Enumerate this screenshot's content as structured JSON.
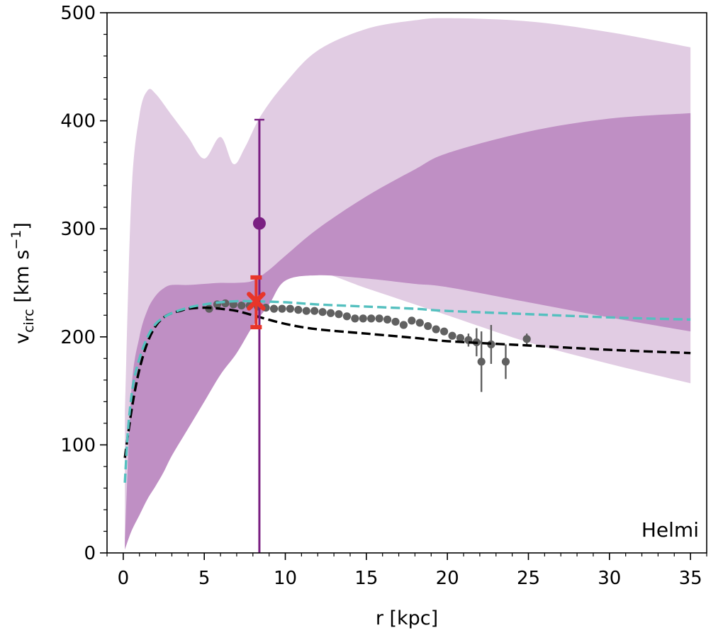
{
  "chart_data": {
    "type": "line",
    "xlabel": "r [kpc]",
    "ylabel_main": "v",
    "ylabel_sub": "circ",
    "ylabel_unit_pre": " [km s",
    "ylabel_unit_sup": "−1",
    "ylabel_unit_post": "]",
    "annotation": "Helmi",
    "xlim": [
      -1,
      36
    ],
    "ylim": [
      0,
      500
    ],
    "xticks": [
      0,
      5,
      10,
      15,
      20,
      25,
      30,
      35
    ],
    "yticks": [
      0,
      100,
      200,
      300,
      400,
      500
    ],
    "grid": false,
    "colors": {
      "outer_band": "#e1cce3",
      "inner_band": "#bf8fc4",
      "black_curve": "#000000",
      "teal_curve": "#55c0bf",
      "data_points": "#606060",
      "purple_marker": "#7a1f82",
      "red_marker": "#e8352a"
    },
    "bands": [
      {
        "id": "outer",
        "x": [
          0.1,
          0.5,
          1.0,
          1.5,
          2.0,
          3.0,
          4.0,
          5.0,
          6.0,
          6.8,
          7.5,
          8.5,
          10,
          12,
          15,
          18,
          20,
          25,
          30,
          35
        ],
        "upper": [
          130,
          330,
          405,
          428,
          425,
          405,
          385,
          365,
          385,
          360,
          375,
          405,
          435,
          465,
          485,
          493,
          495,
          492,
          482,
          468
        ],
        "lower": [
          5,
          50,
          80,
          105,
          120,
          140,
          155,
          170,
          185,
          200,
          215,
          230,
          255,
          260,
          245,
          230,
          220,
          195,
          175,
          157
        ]
      },
      {
        "id": "inner",
        "x": [
          0.1,
          0.5,
          1.0,
          1.5,
          2.0,
          2.5,
          3.0,
          4.0,
          5.0,
          6.0,
          7.0,
          8.0,
          9.0,
          10,
          12,
          15,
          18,
          20,
          25,
          30,
          35
        ],
        "upper": [
          10,
          150,
          200,
          225,
          238,
          245,
          248,
          248,
          249,
          250,
          250,
          252,
          262,
          275,
          300,
          330,
          355,
          370,
          390,
          402,
          407
        ],
        "lower": [
          3,
          20,
          35,
          50,
          62,
          75,
          90,
          115,
          140,
          165,
          185,
          210,
          230,
          252,
          257,
          254,
          249,
          246,
          232,
          218,
          205
        ]
      }
    ],
    "series": [
      {
        "id": "black-dashed",
        "style": "dashed",
        "x": [
          0.1,
          0.3,
          0.6,
          1.0,
          1.5,
          2.0,
          2.5,
          3.0,
          3.5,
          4.0,
          5.0,
          6.0,
          7.0,
          8.0,
          10,
          12,
          15,
          18,
          20,
          25,
          30,
          35
        ],
        "y": [
          88,
          110,
          140,
          170,
          195,
          210,
          218,
          222,
          224,
          226,
          227,
          226,
          224,
          220,
          212,
          207,
          203,
          199,
          196,
          192,
          188,
          185
        ]
      },
      {
        "id": "teal-dashed",
        "style": "dashed",
        "x": [
          0.1,
          0.3,
          0.6,
          1.0,
          1.5,
          2.0,
          2.5,
          3.0,
          4.0,
          5.0,
          6.0,
          7.0,
          8.0,
          10,
          12,
          15,
          18,
          20,
          25,
          30,
          35
        ],
        "y": [
          65,
          115,
          155,
          180,
          200,
          212,
          218,
          222,
          227,
          230,
          232,
          233,
          233,
          232,
          230,
          228,
          226,
          224,
          221,
          218,
          216
        ]
      }
    ],
    "points": {
      "x": [
        5.3,
        5.8,
        6.3,
        6.8,
        7.3,
        7.8,
        8.3,
        8.8,
        9.3,
        9.8,
        10.3,
        10.8,
        11.3,
        11.8,
        12.3,
        12.8,
        13.3,
        13.8,
        14.3,
        14.8,
        15.3,
        15.8,
        16.3,
        16.8,
        17.3,
        17.8,
        18.3,
        18.8,
        19.3,
        19.8,
        20.3,
        20.8,
        21.3,
        21.8,
        22.1,
        22.7,
        23.6,
        24.9
      ],
      "y": [
        226,
        230,
        231,
        230,
        229,
        229,
        228,
        227,
        226,
        226,
        226,
        225,
        224,
        224,
        223,
        222,
        221,
        219,
        217,
        217,
        217,
        217,
        216,
        214,
        211,
        215,
        213,
        210,
        207,
        205,
        201,
        199,
        197,
        195,
        177,
        193,
        177,
        198
      ],
      "err": [
        0,
        0,
        0,
        0,
        0,
        0,
        0,
        0,
        0,
        0,
        0,
        0,
        0,
        0,
        0,
        0,
        0,
        0,
        0,
        0,
        0,
        0,
        0,
        0,
        0,
        0,
        0,
        0,
        0,
        0,
        0,
        3,
        6,
        13,
        28,
        18,
        16,
        5
      ]
    },
    "markers": [
      {
        "id": "purple-circle",
        "x": 8.4,
        "y": 305,
        "y_low": 0,
        "y_high": 401,
        "shape": "circle"
      },
      {
        "id": "red-cross",
        "x": 8.2,
        "y": 233,
        "y_low": 209,
        "y_high": 255,
        "shape": "cross"
      }
    ]
  }
}
